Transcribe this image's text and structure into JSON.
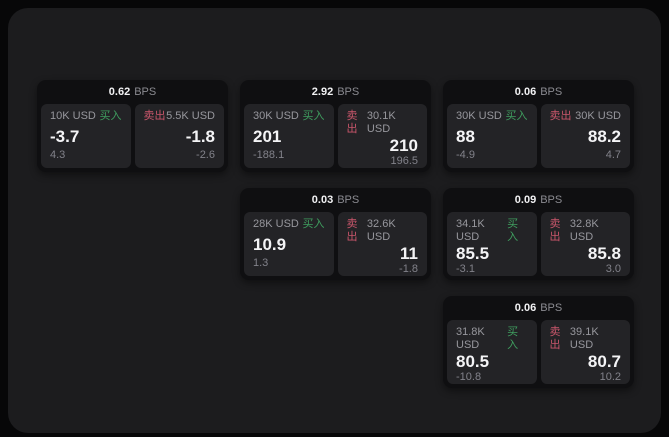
{
  "theme": {
    "outer_bg": "#070708",
    "panel_bg": "#1c1c1e",
    "card_bg": "#0f0f11",
    "tile_bg": "#232326",
    "buy_color": "#3f9e5f",
    "sell_color": "#c9566b"
  },
  "labels": {
    "buy": "买入",
    "sell": "卖出",
    "bps": "BPS"
  },
  "cards": [
    {
      "bps": "0.62",
      "buy": {
        "amount": "10K USD",
        "value": "-3.7",
        "delta": "4.3"
      },
      "sell": {
        "amount": "5.5K USD",
        "value": "-1.8",
        "delta": "-2.6"
      }
    },
    {
      "bps": "2.92",
      "buy": {
        "amount": "30K USD",
        "value": "201",
        "delta": "-188.1"
      },
      "sell": {
        "amount": "30.1K USD",
        "value": "210",
        "delta": "196.5"
      }
    },
    {
      "bps": "0.06",
      "buy": {
        "amount": "30K USD",
        "value": "88",
        "delta": "-4.9"
      },
      "sell": {
        "amount": "30K USD",
        "value": "88.2",
        "delta": "4.7"
      }
    },
    {
      "bps": "0.03",
      "buy": {
        "amount": "28K USD",
        "value": "10.9",
        "delta": "1.3"
      },
      "sell": {
        "amount": "32.6K USD",
        "value": "11",
        "delta": "-1.8"
      }
    },
    {
      "bps": "0.09",
      "buy": {
        "amount": "34.1K USD",
        "value": "85.5",
        "delta": "-3.1"
      },
      "sell": {
        "amount": "32.8K USD",
        "value": "85.8",
        "delta": "3.0"
      }
    },
    {
      "bps": "0.06",
      "buy": {
        "amount": "31.8K USD",
        "value": "80.5",
        "delta": "-10.8"
      },
      "sell": {
        "amount": "39.1K USD",
        "value": "80.7",
        "delta": "10.2"
      }
    }
  ]
}
